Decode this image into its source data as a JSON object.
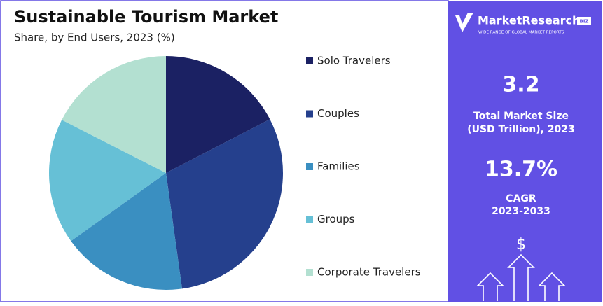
{
  "chart_data": {
    "type": "pie",
    "title": "Sustainable Tourism Market",
    "subtitle": "Share, by End Users, 2023 (%)",
    "categories": [
      "Solo Travelers",
      "Couples",
      "Families",
      "Groups",
      "Corporate Travelers"
    ],
    "values": [
      17.4,
      30.4,
      17.3,
      17.4,
      17.5
    ],
    "colors": [
      "#1b2163",
      "#25408d",
      "#3a8fc1",
      "#66c0d6",
      "#b3e0d1"
    ],
    "legend": "right"
  },
  "sidebar": {
    "brand": "MarketResearch",
    "brand_badge": "BIZ",
    "tagline": "WIDE RANGE OF GLOBAL MARKET REPORTS",
    "market_size": "3.2",
    "market_size_label_1": "Total Market Size",
    "market_size_label_2": "(USD Trillion), 2023",
    "cagr": "13.7%",
    "cagr_label": "CAGR",
    "cagr_period": "2023-2033",
    "icon_symbol": "$"
  }
}
